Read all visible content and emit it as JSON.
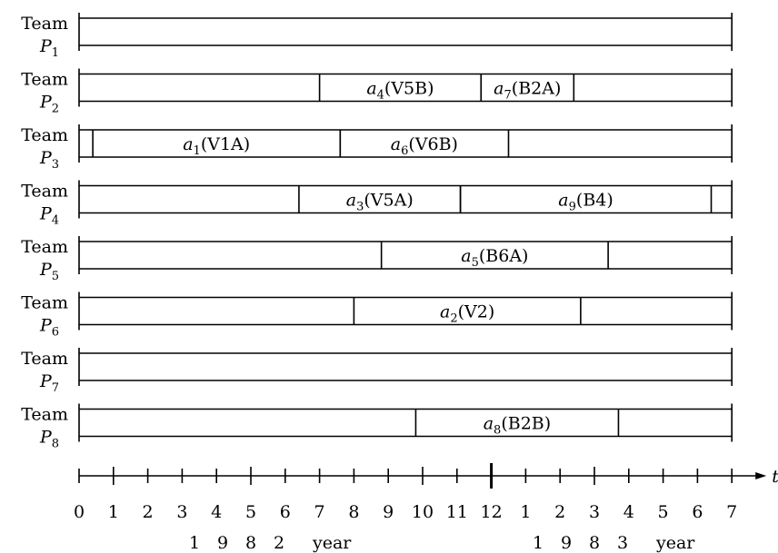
{
  "chart_data": {
    "type": "timeline",
    "x_axis": {
      "variable": "t",
      "tick_labels": [
        "0",
        "1",
        "2",
        "3",
        "4",
        "5",
        "6",
        "7",
        "8",
        "9",
        "10",
        "11",
        "12",
        "1",
        "2",
        "3",
        "4",
        "5",
        "6",
        "7"
      ],
      "year_labels": [
        {
          "text": "1  9  8  2",
          "suffix": "year"
        },
        {
          "text": "1  9  8  3",
          "suffix": "year"
        }
      ]
    },
    "rows": [
      {
        "team": "Team",
        "sub": "1",
        "tasks": []
      },
      {
        "team": "Team",
        "sub": "2",
        "tasks": [
          {
            "name": "a",
            "idx": "4",
            "code": "(V5B)",
            "start": 7.0,
            "end": 11.7
          },
          {
            "name": "a",
            "idx": "7",
            "code": "(B2A)",
            "start": 11.7,
            "end": 14.4
          }
        ]
      },
      {
        "team": "Team",
        "sub": "3",
        "tasks": [
          {
            "name": "a",
            "idx": "1",
            "code": "(V1A)",
            "start": 0.4,
            "end": 7.6
          },
          {
            "name": "a",
            "idx": "6",
            "code": "(V6B)",
            "start": 7.6,
            "end": 12.5
          }
        ]
      },
      {
        "team": "Team",
        "sub": "4",
        "tasks": [
          {
            "name": "a",
            "idx": "3",
            "code": "(V5A)",
            "start": 6.4,
            "end": 11.1
          },
          {
            "name": "a",
            "idx": "9",
            "code": "(B4)",
            "start": 11.1,
            "end": 18.4
          }
        ]
      },
      {
        "team": "Team",
        "sub": "5",
        "tasks": [
          {
            "name": "a",
            "idx": "5",
            "code": "(B6A)",
            "start": 8.8,
            "end": 15.4
          }
        ]
      },
      {
        "team": "Team",
        "sub": "6",
        "tasks": [
          {
            "name": "a",
            "idx": "2",
            "code": "(V2)",
            "start": 8.0,
            "end": 14.6
          }
        ]
      },
      {
        "team": "Team",
        "sub": "7",
        "tasks": []
      },
      {
        "team": "Team",
        "sub": "8",
        "tasks": [
          {
            "name": "a",
            "idx": "8",
            "code": "(B2B)",
            "start": 9.8,
            "end": 15.7
          }
        ]
      }
    ]
  }
}
